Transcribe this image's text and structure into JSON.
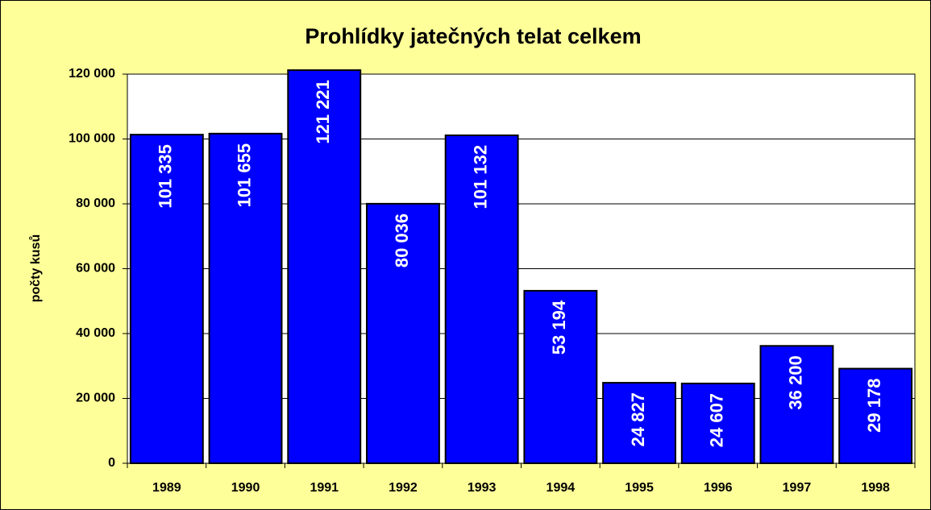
{
  "chart_data": {
    "type": "bar",
    "title": "Prohlídky jatečných telat celkem",
    "y_label": "počty kusů",
    "categories": [
      "1989",
      "1990",
      "1991",
      "1992",
      "1993",
      "1994",
      "1995",
      "1996",
      "1997",
      "1998"
    ],
    "values": [
      101335,
      101655,
      121221,
      80036,
      101132,
      53194,
      24827,
      24607,
      36200,
      29178
    ],
    "value_labels": [
      "101 335",
      "101 655",
      "121 221",
      "80 036",
      "101 132",
      "53 194",
      "24 827",
      "24 607",
      "36 200",
      "29 178"
    ],
    "color": "#0000ff",
    "ylim": [
      0,
      120000
    ],
    "yticks": [
      0,
      {
        "value": 20000,
        "label": "20 000"
      },
      {
        "value": 40000,
        "label": "40 000"
      },
      {
        "value": 60000,
        "label": "60 000"
      },
      {
        "value": 80000,
        "label": "80 000"
      },
      {
        "value": 100000,
        "label": "100 000"
      },
      {
        "value": 120000,
        "label": "120 000"
      }
    ],
    "grid": true
  }
}
